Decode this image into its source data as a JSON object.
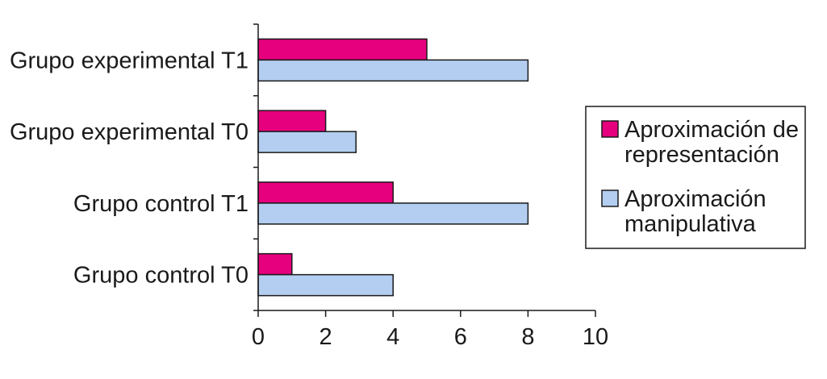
{
  "chart_data": {
    "type": "bar",
    "orientation": "horizontal",
    "categories": [
      "Grupo experimental T1",
      "Grupo experimental T0",
      "Grupo control T1",
      "Grupo control T0"
    ],
    "series": [
      {
        "name": "Aproximación de representación",
        "name_lines": [
          "Aproximación de",
          "representación"
        ],
        "color": "#e6007e",
        "values": [
          5,
          2,
          4,
          1
        ]
      },
      {
        "name": "Aproximación manipulativa",
        "name_lines": [
          "Aproximación",
          "manipulativa"
        ],
        "color": "#b3cef0",
        "values": [
          8,
          2.9,
          8,
          4
        ]
      }
    ],
    "xlim": [
      0,
      10
    ],
    "xticks": [
      0,
      2,
      4,
      6,
      8,
      10
    ],
    "xtick_labels": [
      "0",
      "2",
      "4",
      "6",
      "8",
      "10"
    ],
    "grid": false,
    "legend_position": "right"
  }
}
